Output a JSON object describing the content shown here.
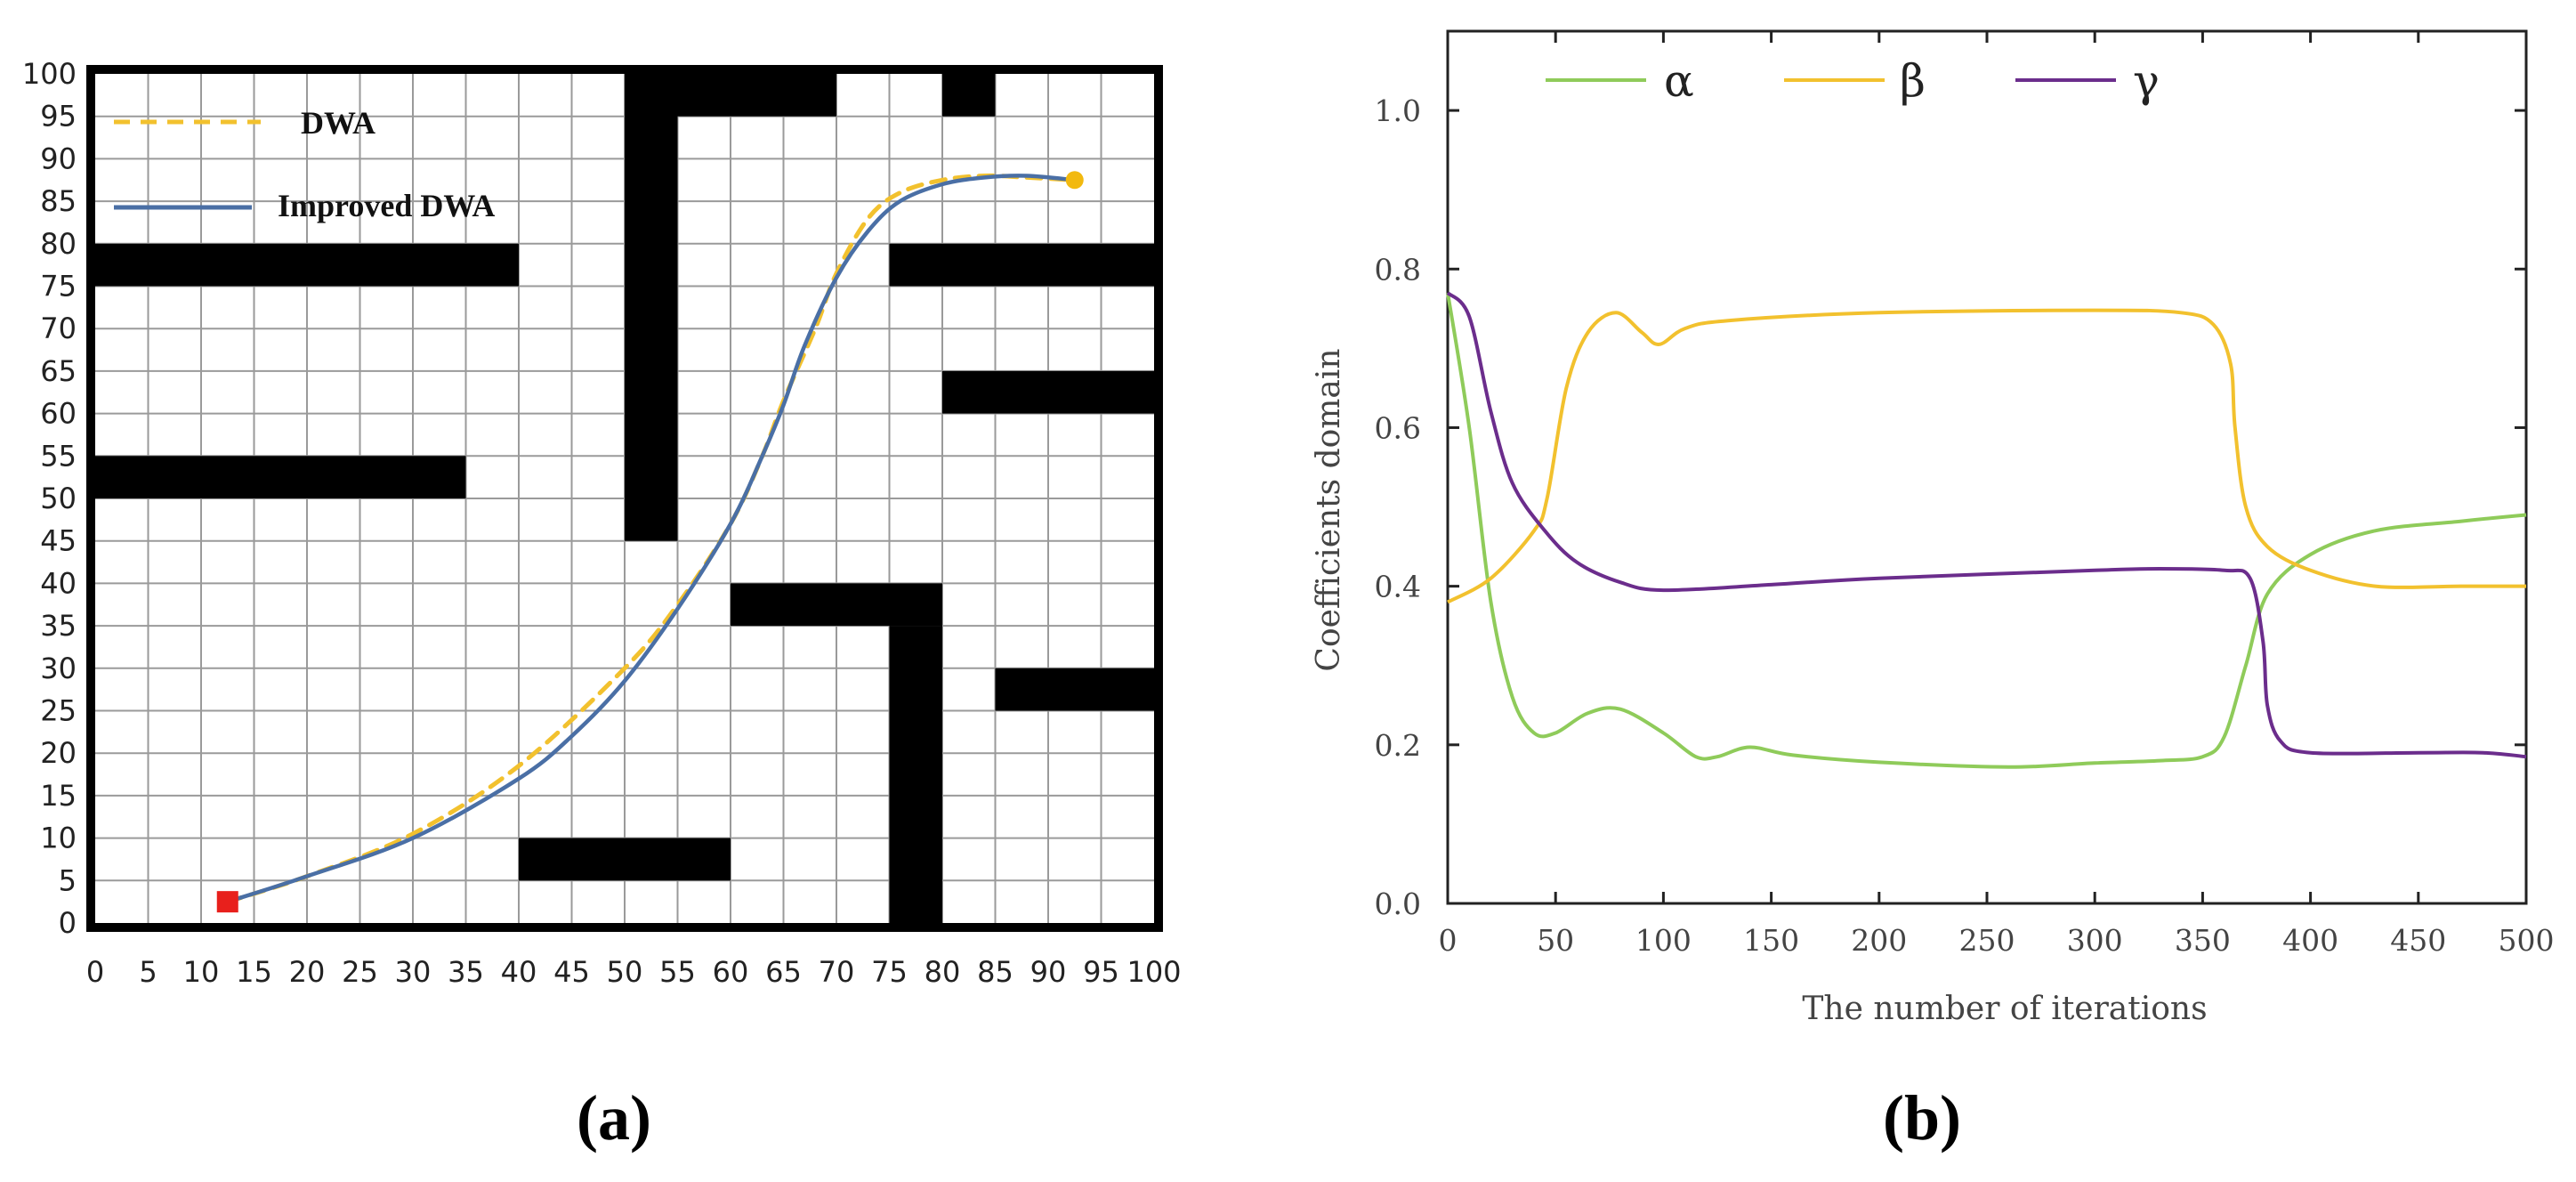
{
  "panels": {
    "a": "(a)",
    "b": "(b)"
  },
  "chart_data": [
    {
      "type": "line",
      "panel": "(a)",
      "xlim": [
        0,
        100
      ],
      "ylim": [
        0,
        100
      ],
      "x_ticks": [
        0,
        5,
        10,
        15,
        20,
        25,
        30,
        35,
        40,
        45,
        50,
        55,
        60,
        65,
        70,
        75,
        80,
        85,
        90,
        95,
        100
      ],
      "y_ticks": [
        0,
        5,
        10,
        15,
        20,
        25,
        30,
        35,
        40,
        45,
        50,
        55,
        60,
        65,
        70,
        75,
        80,
        85,
        90,
        95,
        100
      ],
      "grid": true,
      "legend_position": "top-left",
      "obstacles": [
        {
          "x0": 0,
          "x1": 40,
          "y0": 75,
          "y1": 80
        },
        {
          "x0": 0,
          "x1": 35,
          "y0": 50,
          "y1": 55
        },
        {
          "x0": 50,
          "x1": 55,
          "y0": 45,
          "y1": 100
        },
        {
          "x0": 55,
          "x1": 70,
          "y0": 95,
          "y1": 100
        },
        {
          "x0": 80,
          "x1": 85,
          "y0": 95,
          "y1": 100
        },
        {
          "x0": 75,
          "x1": 100,
          "y0": 75,
          "y1": 80
        },
        {
          "x0": 80,
          "x1": 100,
          "y0": 60,
          "y1": 65
        },
        {
          "x0": 60,
          "x1": 80,
          "y0": 35,
          "y1": 40
        },
        {
          "x0": 75,
          "x1": 80,
          "y0": 0,
          "y1": 35
        },
        {
          "x0": 85,
          "x1": 100,
          "y0": 25,
          "y1": 30
        },
        {
          "x0": 40,
          "x1": 60,
          "y0": 5,
          "y1": 10
        }
      ],
      "start": {
        "x": 12.5,
        "y": 2.5
      },
      "goal": {
        "x": 92.5,
        "y": 87.5
      },
      "series": [
        {
          "name": "DWA",
          "color": "#F2C12E",
          "dashed": true,
          "points": [
            [
              12.5,
              2.5
            ],
            [
              20,
              5.5
            ],
            [
              30,
              10.5
            ],
            [
              40,
              18.5
            ],
            [
              50,
              30
            ],
            [
              55,
              37.5
            ],
            [
              60,
              47
            ],
            [
              63,
              55
            ],
            [
              65,
              61.5
            ],
            [
              68,
              70
            ],
            [
              70,
              76.5
            ],
            [
              73,
              83
            ],
            [
              76,
              86
            ],
            [
              80,
              87.5
            ],
            [
              84,
              88
            ],
            [
              88,
              87.8
            ],
            [
              92.5,
              87.5
            ]
          ]
        },
        {
          "name": "Improved DWA",
          "color": "#4A6FA5",
          "dashed": false,
          "points": [
            [
              12.5,
              2.5
            ],
            [
              20,
              5.5
            ],
            [
              30,
              10
            ],
            [
              40,
              17
            ],
            [
              45,
              22
            ],
            [
              50,
              28.5
            ],
            [
              55,
              37
            ],
            [
              60,
              47
            ],
            [
              63,
              55
            ],
            [
              65,
              61
            ],
            [
              67,
              68
            ],
            [
              70,
              76
            ],
            [
              73,
              81.5
            ],
            [
              76,
              85
            ],
            [
              80,
              87
            ],
            [
              84,
              87.8
            ],
            [
              88,
              88
            ],
            [
              92.5,
              87.5
            ]
          ]
        }
      ]
    },
    {
      "type": "line",
      "panel": "(b)",
      "xlabel": "The number of iterations",
      "ylabel": "Coefficients domain",
      "xlim": [
        0,
        500
      ],
      "ylim": [
        0,
        1.1
      ],
      "x_ticks": [
        "0",
        "50",
        "100",
        "150",
        "200",
        "250",
        "300",
        "350",
        "400",
        "450",
        "500"
      ],
      "y_ticks": [
        "0.0",
        "0.2",
        "0.4",
        "0.6",
        "0.8",
        "1.0"
      ],
      "grid": false,
      "legend_position": "top",
      "series": [
        {
          "name": "α",
          "color": "#8FCB5A",
          "points": [
            [
              0,
              0.77
            ],
            [
              10,
              0.6
            ],
            [
              20,
              0.38
            ],
            [
              30,
              0.26
            ],
            [
              40,
              0.215
            ],
            [
              50,
              0.215
            ],
            [
              65,
              0.24
            ],
            [
              80,
              0.245
            ],
            [
              100,
              0.215
            ],
            [
              115,
              0.185
            ],
            [
              125,
              0.185
            ],
            [
              140,
              0.197
            ],
            [
              160,
              0.187
            ],
            [
              200,
              0.178
            ],
            [
              260,
              0.172
            ],
            [
              300,
              0.177
            ],
            [
              330,
              0.18
            ],
            [
              350,
              0.185
            ],
            [
              360,
              0.21
            ],
            [
              370,
              0.3
            ],
            [
              380,
              0.39
            ],
            [
              400,
              0.44
            ],
            [
              430,
              0.47
            ],
            [
              470,
              0.482
            ],
            [
              500,
              0.49
            ]
          ]
        },
        {
          "name": "β",
          "color": "#F2C12E",
          "points": [
            [
              0,
              0.38
            ],
            [
              20,
              0.41
            ],
            [
              40,
              0.47
            ],
            [
              46,
              0.51
            ],
            [
              55,
              0.65
            ],
            [
              65,
              0.72
            ],
            [
              78,
              0.745
            ],
            [
              90,
              0.72
            ],
            [
              98,
              0.705
            ],
            [
              110,
              0.725
            ],
            [
              130,
              0.735
            ],
            [
              200,
              0.745
            ],
            [
              300,
              0.748
            ],
            [
              340,
              0.745
            ],
            [
              355,
              0.73
            ],
            [
              363,
              0.68
            ],
            [
              365,
              0.6
            ],
            [
              370,
              0.5
            ],
            [
              380,
              0.45
            ],
            [
              400,
              0.42
            ],
            [
              430,
              0.4
            ],
            [
              470,
              0.4
            ],
            [
              500,
              0.4
            ]
          ]
        },
        {
          "name": "γ",
          "color": "#6B2D8C",
          "points": [
            [
              0,
              0.77
            ],
            [
              10,
              0.74
            ],
            [
              20,
              0.62
            ],
            [
              30,
              0.53
            ],
            [
              45,
              0.47
            ],
            [
              60,
              0.43
            ],
            [
              80,
              0.405
            ],
            [
              100,
              0.395
            ],
            [
              150,
              0.402
            ],
            [
              200,
              0.41
            ],
            [
              300,
              0.42
            ],
            [
              330,
              0.422
            ],
            [
              360,
              0.42
            ],
            [
              372,
              0.41
            ],
            [
              378,
              0.33
            ],
            [
              380,
              0.25
            ],
            [
              386,
              0.205
            ],
            [
              400,
              0.19
            ],
            [
              450,
              0.19
            ],
            [
              480,
              0.19
            ],
            [
              500,
              0.185
            ]
          ]
        }
      ]
    }
  ]
}
